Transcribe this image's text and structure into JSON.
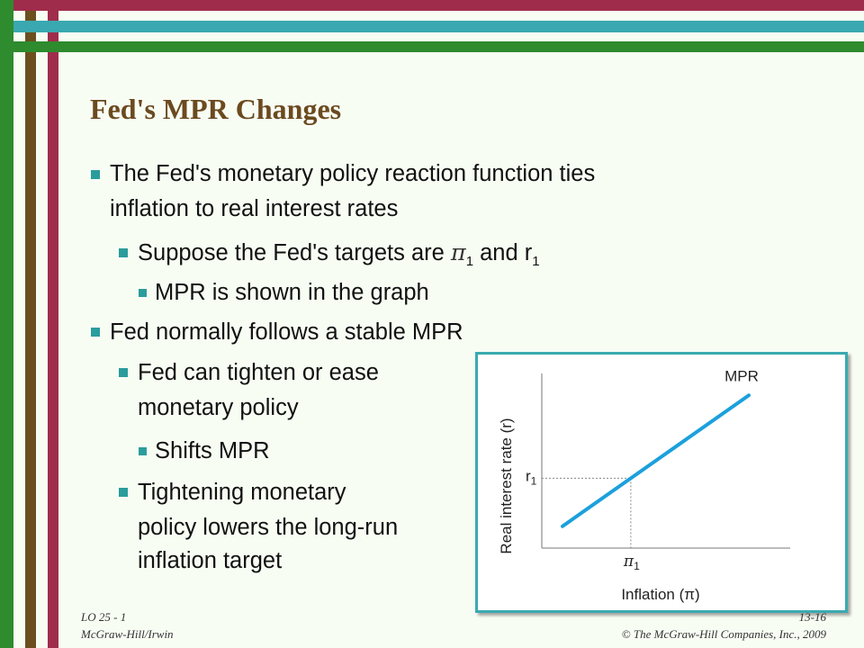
{
  "slide": {
    "title": "Fed's MPR Changes",
    "bullets": [
      {
        "level": 1,
        "text": "The Fed's monetary policy reaction function ties"
      },
      {
        "level": 1,
        "text": "inflation to real interest rates",
        "continuation": true
      },
      {
        "level": 2,
        "text_before": "Suppose the Fed's targets are ",
        "pi": "π",
        "pi_sub": "1",
        "text_mid": " and r",
        "r_sub": "1"
      },
      {
        "level": 3,
        "text": "MPR is shown in the graph"
      },
      {
        "level": 1,
        "text": "Fed normally follows a stable MPR"
      },
      {
        "level": 2,
        "text": "Fed can tighten or ease"
      },
      {
        "level": 2,
        "text": "monetary policy",
        "continuation": true
      },
      {
        "level": 3,
        "text": "Shifts MPR"
      },
      {
        "level": 2,
        "text": "Tightening monetary"
      },
      {
        "level": 2,
        "text": "policy lowers the long-run",
        "continuation": true
      },
      {
        "level": 2,
        "text": "inflation target",
        "continuation": true
      }
    ],
    "footer": {
      "lo": "LO 25 - 1",
      "publisher": "McGraw-Hill/Irwin",
      "page": "13-16",
      "copyright": "© The McGraw-Hill Companies, Inc., 2009"
    },
    "colors": {
      "title": "#6b4a1f",
      "bullet_marker": "#2b9c9c",
      "stripe_brown": "#6b4f1e",
      "stripe_maroon": "#a02c4b",
      "stripe_green": "#2e8b2e",
      "stripe_teal": "#3aa8b0",
      "mpr_line": "#1ca0dc"
    }
  },
  "chart_data": {
    "type": "line",
    "title": "",
    "xlabel": "Inflation (π)",
    "ylabel": "Real interest rate  (r)",
    "x_tick_label": "π",
    "x_tick_sub": "1",
    "y_tick_label": "r",
    "y_tick_sub": "1",
    "series": [
      {
        "name": "MPR",
        "x": [
          1,
          10
        ],
        "y": [
          1,
          7
        ]
      }
    ],
    "target_point": {
      "x": 4.3,
      "y": 3.2
    },
    "xlim": [
      0,
      12
    ],
    "ylim": [
      0,
      8
    ],
    "grid": false,
    "legend": "none"
  }
}
